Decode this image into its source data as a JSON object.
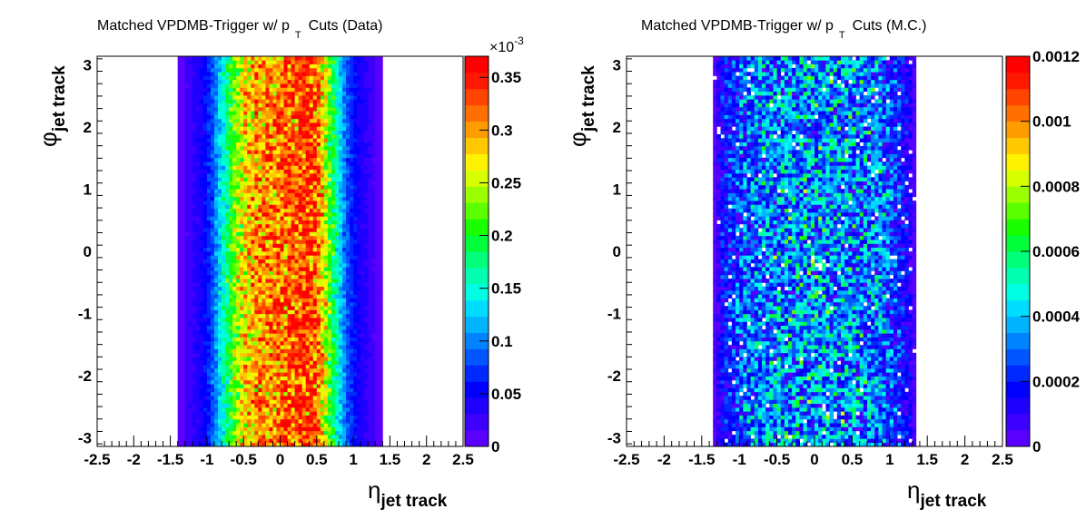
{
  "chart_data": [
    {
      "type": "heatmap",
      "title": {
        "pre": "Matched VPDMB-Trigger w/ p",
        "sub": "T",
        "post": "Cuts (Data)"
      },
      "xlabel": {
        "symbol": "η",
        "sub": "jet track"
      },
      "ylabel": {
        "symbol": "φ",
        "sub": "jet track"
      },
      "xlim": [
        -2.5,
        2.5
      ],
      "ylim": [
        -3.1416,
        3.1416
      ],
      "xticks": [
        -2.5,
        -2,
        -1.5,
        -1,
        -0.5,
        0,
        0.5,
        1,
        1.5,
        2,
        2.5
      ],
      "xtick_labels": [
        "-2.5",
        "-2",
        "-1.5",
        "-1",
        "-0.5",
        "0",
        "0.5",
        "1",
        "1.5",
        "2",
        "2.5"
      ],
      "yticks": [
        -3,
        -2,
        -1,
        0,
        1,
        2,
        3
      ],
      "ytick_labels": [
        "-3",
        "-2",
        "-1",
        "0",
        "1",
        "2",
        "3"
      ],
      "zlim": [
        0,
        0.00037
      ],
      "zticks": [
        0,
        5e-05,
        0.0001,
        0.00015,
        0.0002,
        0.00025,
        0.0003,
        0.00035
      ],
      "ztick_labels": [
        "0",
        "0.05",
        "0.1",
        "0.15",
        "0.2",
        "0.25",
        "0.3",
        "0.35"
      ],
      "z_exponent": {
        "base": "×10",
        "exp": "-3"
      },
      "bins": {
        "nx": 100,
        "ny": 100
      },
      "eta_profile": {
        "eta": [
          -1.4,
          -1.3,
          -1.2,
          -1.1,
          -1.0,
          -0.9,
          -0.8,
          -0.7,
          -0.6,
          -0.5,
          -0.4,
          -0.3,
          -0.2,
          -0.1,
          0.0,
          0.1,
          0.2,
          0.3,
          0.4,
          0.5,
          0.6,
          0.7,
          0.8,
          0.9,
          1.0,
          1.1,
          1.2,
          1.3,
          1.4
        ],
        "value": [
          2e-06,
          1.5e-05,
          3e-05,
          4e-05,
          6e-05,
          9e-05,
          0.00014,
          0.00019,
          0.00024,
          0.00027,
          0.00029,
          0.0003,
          0.00031,
          0.00031,
          0.00031,
          0.00032,
          0.00033,
          0.00034,
          0.00034,
          0.00033,
          0.00027,
          0.0002,
          0.00014,
          9e-05,
          6e-05,
          4e-05,
          3e-05,
          1.5e-05,
          2e-06
        ]
      },
      "noise": 0.12
    },
    {
      "type": "heatmap",
      "title": {
        "pre": "Matched VPDMB-Trigger w/ p",
        "sub": "T",
        "post": "Cuts (M.C.)"
      },
      "xlabel": {
        "symbol": "η",
        "sub": "jet track"
      },
      "ylabel": {
        "symbol": "φ",
        "sub": "jet track"
      },
      "xlim": [
        -2.5,
        2.5
      ],
      "ylim": [
        -3.1416,
        3.1416
      ],
      "xticks": [
        -2.5,
        -2,
        -1.5,
        -1,
        -0.5,
        0,
        0.5,
        1,
        1.5,
        2,
        2.5
      ],
      "xtick_labels": [
        "-2.5",
        "-2",
        "-1.5",
        "-1",
        "-0.5",
        "0",
        "0.5",
        "1",
        "1.5",
        "2",
        "2.5"
      ],
      "yticks": [
        -3,
        -2,
        -1,
        0,
        1,
        2,
        3
      ],
      "ytick_labels": [
        "-3",
        "-2",
        "-1",
        "0",
        "1",
        "2",
        "3"
      ],
      "zlim": [
        0,
        0.0012
      ],
      "zticks": [
        0,
        0.0002,
        0.0004,
        0.0006,
        0.0008,
        0.001,
        0.0012
      ],
      "ztick_labels": [
        "0",
        "0.0002",
        "0.0004",
        "0.0006",
        "0.0008",
        "0.001",
        "0.0012"
      ],
      "bins": {
        "nx": 100,
        "ny": 100
      },
      "eta_profile": {
        "eta": [
          -1.35,
          -1.3,
          -1.2,
          -1.1,
          -1.0,
          -0.8,
          -0.5,
          -0.2,
          0.0,
          0.2,
          0.5,
          0.8,
          1.0,
          1.1,
          1.2,
          1.3,
          1.35
        ],
        "value": [
          0.0,
          8e-05,
          0.00016,
          0.0002,
          0.00024,
          0.00029,
          0.00032,
          0.00034,
          0.00034,
          0.00034,
          0.00033,
          0.0003,
          0.00025,
          0.0002,
          0.00016,
          8e-05,
          0.0
        ]
      },
      "noise": 0.55
    }
  ],
  "colors": {
    "palette": [
      "#5a00ff",
      "#3d00ff",
      "#1f00ff",
      "#0000ff",
      "#0029ff",
      "#0055ff",
      "#0083ff",
      "#00b3ff",
      "#00dcff",
      "#00ffe2",
      "#00ffb1",
      "#00ff7a",
      "#00ff3a",
      "#1aff00",
      "#5cff00",
      "#9bff00",
      "#d6ff00",
      "#fff200",
      "#ffc800",
      "#ff9d00",
      "#ff7000",
      "#ff4400",
      "#ff1800",
      "#ff0000"
    ],
    "frame": "#000000",
    "background": "#ffffff"
  }
}
